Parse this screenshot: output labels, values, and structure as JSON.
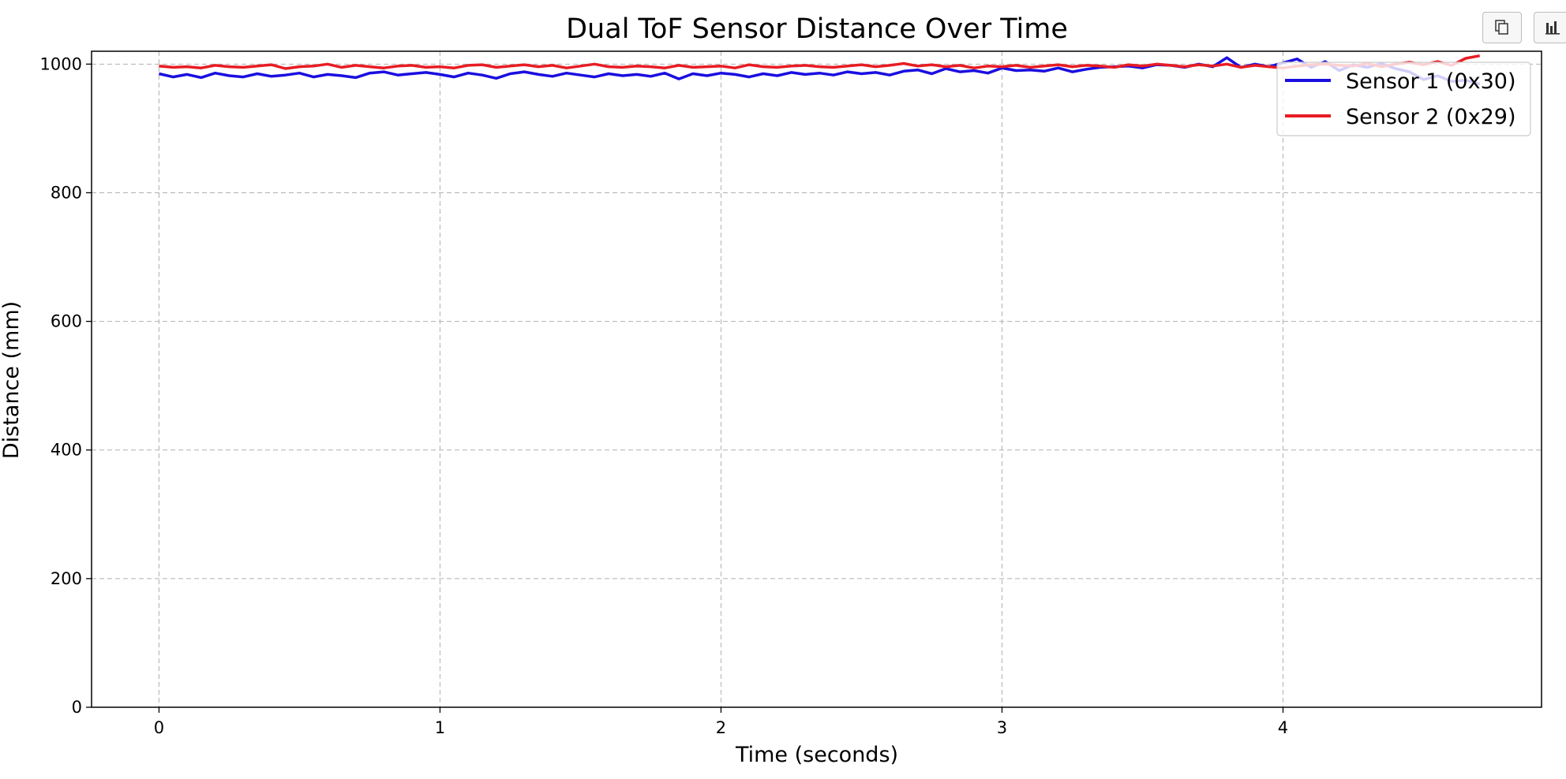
{
  "toolbar": {
    "copy_icon": "copy-icon",
    "chart_icon": "bar-chart-icon"
  },
  "chart_data": {
    "type": "line",
    "title": "Dual ToF Sensor Distance Over Time",
    "xlabel": "Time (seconds)",
    "ylabel": "Distance (mm)",
    "xlim": [
      -0.24,
      4.92
    ],
    "ylim": [
      0,
      1020
    ],
    "xticks": [
      0,
      1,
      2,
      3,
      4
    ],
    "yticks": [
      0,
      200,
      400,
      600,
      800,
      1000
    ],
    "grid": true,
    "grid_style": "dashed",
    "legend": "top-right",
    "series": [
      {
        "name": "Sensor 1 (0x30)",
        "color": "#1a0ee0",
        "x": [
          0,
          0.05,
          0.1,
          0.15,
          0.2,
          0.25,
          0.3,
          0.35,
          0.4,
          0.45,
          0.5,
          0.55,
          0.6,
          0.65,
          0.7,
          0.75,
          0.8,
          0.85,
          0.9,
          0.95,
          1,
          1.05,
          1.1,
          1.15,
          1.2,
          1.25,
          1.3,
          1.35,
          1.4,
          1.45,
          1.5,
          1.55,
          1.6,
          1.65,
          1.7,
          1.75,
          1.8,
          1.85,
          1.9,
          1.95,
          2,
          2.05,
          2.1,
          2.15,
          2.2,
          2.25,
          2.3,
          2.35,
          2.4,
          2.45,
          2.5,
          2.55,
          2.6,
          2.65,
          2.7,
          2.75,
          2.8,
          2.85,
          2.9,
          2.95,
          3,
          3.05,
          3.1,
          3.15,
          3.2,
          3.25,
          3.3,
          3.35,
          3.4,
          3.45,
          3.5,
          3.55,
          3.6,
          3.65,
          3.7,
          3.75,
          3.8,
          3.85,
          3.9,
          3.95,
          4,
          4.05,
          4.1,
          4.15,
          4.2,
          4.25,
          4.3,
          4.35,
          4.4,
          4.45,
          4.5,
          4.55,
          4.6,
          4.65,
          4.7
        ],
        "y": [
          985,
          980,
          984,
          979,
          986,
          982,
          980,
          985,
          981,
          983,
          986,
          980,
          984,
          982,
          979,
          986,
          988,
          983,
          985,
          987,
          984,
          980,
          986,
          983,
          978,
          985,
          988,
          984,
          981,
          986,
          983,
          980,
          985,
          982,
          984,
          981,
          986,
          977,
          985,
          982,
          986,
          984,
          980,
          985,
          982,
          987,
          984,
          986,
          983,
          988,
          985,
          987,
          983,
          989,
          991,
          985,
          993,
          988,
          990,
          986,
          994,
          990,
          991,
          989,
          994,
          988,
          992,
          995,
          996,
          997,
          994,
          999,
          998,
          995,
          1000,
          996,
          1010,
          995,
          1000,
          996,
          1002,
          1008,
          995,
          1004,
          990,
          999,
          995,
          1001,
          993,
          988,
          976,
          982,
          973,
          975,
          969
        ]
      },
      {
        "name": "Sensor 2 (0x29)",
        "color": "#e81c23",
        "x": [
          0,
          0.05,
          0.1,
          0.15,
          0.2,
          0.25,
          0.3,
          0.35,
          0.4,
          0.45,
          0.5,
          0.55,
          0.6,
          0.65,
          0.7,
          0.75,
          0.8,
          0.85,
          0.9,
          0.95,
          1,
          1.05,
          1.1,
          1.15,
          1.2,
          1.25,
          1.3,
          1.35,
          1.4,
          1.45,
          1.5,
          1.55,
          1.6,
          1.65,
          1.7,
          1.75,
          1.8,
          1.85,
          1.9,
          1.95,
          2,
          2.05,
          2.1,
          2.15,
          2.2,
          2.25,
          2.3,
          2.35,
          2.4,
          2.45,
          2.5,
          2.55,
          2.6,
          2.65,
          2.7,
          2.75,
          2.8,
          2.85,
          2.9,
          2.95,
          3,
          3.05,
          3.1,
          3.15,
          3.2,
          3.25,
          3.3,
          3.35,
          3.4,
          3.45,
          3.5,
          3.55,
          3.6,
          3.65,
          3.7,
          3.75,
          3.8,
          3.85,
          3.9,
          3.95,
          4,
          4.05,
          4.1,
          4.15,
          4.2,
          4.25,
          4.3,
          4.35,
          4.4,
          4.45,
          4.5,
          4.55,
          4.6,
          4.65,
          4.7
        ],
        "y": [
          997,
          995,
          996,
          994,
          998,
          996,
          995,
          997,
          999,
          993,
          996,
          997,
          1000,
          995,
          998,
          996,
          994,
          997,
          998,
          995,
          996,
          994,
          998,
          999,
          995,
          997,
          999,
          996,
          998,
          994,
          997,
          1000,
          996,
          995,
          997,
          996,
          994,
          998,
          995,
          996,
          997,
          994,
          999,
          996,
          995,
          997,
          998,
          996,
          995,
          997,
          999,
          996,
          998,
          1001,
          997,
          999,
          996,
          998,
          994,
          997,
          996,
          998,
          995,
          997,
          999,
          996,
          998,
          997,
          995,
          999,
          997,
          1000,
          998,
          996,
          999,
          997,
          1000,
          995,
          998,
          996,
          994,
          997,
          999,
          1000,
          998,
          997,
          1001,
          996,
          1000,
          1003,
          999,
          1004,
          998,
          1009,
          1013
        ]
      }
    ]
  }
}
